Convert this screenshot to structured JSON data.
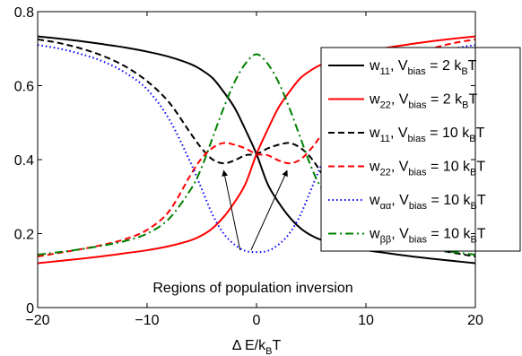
{
  "chart_data": {
    "type": "line",
    "title": "",
    "xlabel": "Δ E/k",
    "xlabel_sub": "B",
    "xlabel_tail": "T",
    "ylabel": "",
    "xlim": [
      -20,
      20
    ],
    "ylim": [
      0,
      0.8
    ],
    "x_ticks": [
      -20,
      -10,
      0,
      10,
      20
    ],
    "x_tick_labels": [
      "−20",
      "−10",
      "0",
      "10",
      "20"
    ],
    "y_ticks": [
      0,
      0.2,
      0.4,
      0.6,
      0.8
    ],
    "y_tick_labels": [
      "0",
      "0.2",
      "0.4",
      "0.6",
      "0.8"
    ],
    "grid": false,
    "legend_position": "right",
    "x": [
      -20,
      -18,
      -16,
      -14,
      -12,
      -10,
      -8,
      -6,
      -5,
      -4,
      -3,
      -2,
      -1,
      0,
      1,
      2,
      3,
      4,
      5,
      6,
      8,
      10,
      12,
      14,
      16,
      18,
      20
    ],
    "series": [
      {
        "name": "w",
        "sub": "11",
        "suffix": ", V",
        "sub2": "bias",
        "tail": " = 2 k",
        "sub3": "B",
        "end": "T",
        "color": "#000000",
        "dash": "solid",
        "values": [
          0.733,
          0.727,
          0.72,
          0.712,
          0.703,
          0.692,
          0.678,
          0.658,
          0.642,
          0.62,
          0.583,
          0.54,
          0.48,
          0.415,
          0.335,
          0.285,
          0.245,
          0.215,
          0.195,
          0.182,
          0.166,
          0.155,
          0.147,
          0.139,
          0.132,
          0.126,
          0.12
        ]
      },
      {
        "name": "w",
        "sub": "22",
        "suffix": ", V",
        "sub2": "bias",
        "tail": " = 2 k",
        "sub3": "B",
        "end": "T",
        "color": "#ff0000",
        "dash": "solid",
        "values": [
          0.12,
          0.126,
          0.132,
          0.139,
          0.147,
          0.155,
          0.166,
          0.182,
          0.195,
          0.215,
          0.245,
          0.285,
          0.335,
          0.415,
          0.48,
          0.54,
          0.583,
          0.62,
          0.642,
          0.658,
          0.678,
          0.692,
          0.703,
          0.712,
          0.72,
          0.727,
          0.733
        ]
      },
      {
        "name": "w",
        "sub": "11",
        "suffix": ", V",
        "sub2": "bias",
        "tail": " = 10 k",
        "sub3": "B",
        "end": "T",
        "color": "#000000",
        "dash": "dashed",
        "values": [
          0.725,
          0.715,
          0.7,
          0.68,
          0.652,
          0.612,
          0.555,
          0.47,
          0.43,
          0.4,
          0.39,
          0.398,
          0.412,
          0.415,
          0.43,
          0.44,
          0.445,
          0.432,
          0.404,
          0.36,
          0.26,
          0.21,
          0.185,
          0.17,
          0.158,
          0.148,
          0.138
        ]
      },
      {
        "name": "w",
        "sub": "22",
        "suffix": ", V",
        "sub2": "bias",
        "tail": " = 10 k",
        "sub3": "B",
        "end": "T",
        "color": "#ff0000",
        "dash": "dashed",
        "values": [
          0.138,
          0.148,
          0.158,
          0.17,
          0.185,
          0.21,
          0.26,
          0.36,
          0.404,
          0.432,
          0.445,
          0.44,
          0.43,
          0.415,
          0.412,
          0.398,
          0.39,
          0.4,
          0.43,
          0.47,
          0.555,
          0.612,
          0.652,
          0.68,
          0.7,
          0.715,
          0.725
        ]
      },
      {
        "name": "w",
        "sub": "αα",
        "suffix": ", V",
        "sub2": "bias",
        "tail": " = 10 k",
        "sub3": "B",
        "end": "T",
        "color": "#0000ff",
        "dash": "dotted",
        "values": [
          0.71,
          0.7,
          0.685,
          0.665,
          0.635,
          0.59,
          0.51,
          0.39,
          0.32,
          0.25,
          0.2,
          0.17,
          0.153,
          0.15,
          0.153,
          0.17,
          0.2,
          0.25,
          0.32,
          0.39,
          0.51,
          0.59,
          0.635,
          0.665,
          0.685,
          0.7,
          0.71
        ]
      },
      {
        "name": "w",
        "sub": "ββ",
        "suffix": ", V",
        "sub2": "bias",
        "tail": " = 10 k",
        "sub3": "B",
        "end": "T",
        "color": "#008000",
        "dash": "dashdot",
        "values": [
          0.143,
          0.15,
          0.158,
          0.168,
          0.18,
          0.2,
          0.24,
          0.32,
          0.38,
          0.46,
          0.54,
          0.61,
          0.66,
          0.685,
          0.66,
          0.61,
          0.54,
          0.46,
          0.38,
          0.32,
          0.24,
          0.2,
          0.18,
          0.168,
          0.158,
          0.15,
          0.143
        ]
      }
    ],
    "annotation": {
      "text": "Regions of population inversion",
      "arrow_from": [
        -1.5,
        0.16
      ],
      "arrow_to_left": [
        -3.0,
        0.39
      ],
      "arrow_from_right": [
        -0.5,
        0.16
      ],
      "arrow_to_right": [
        2.8,
        0.39
      ]
    }
  }
}
